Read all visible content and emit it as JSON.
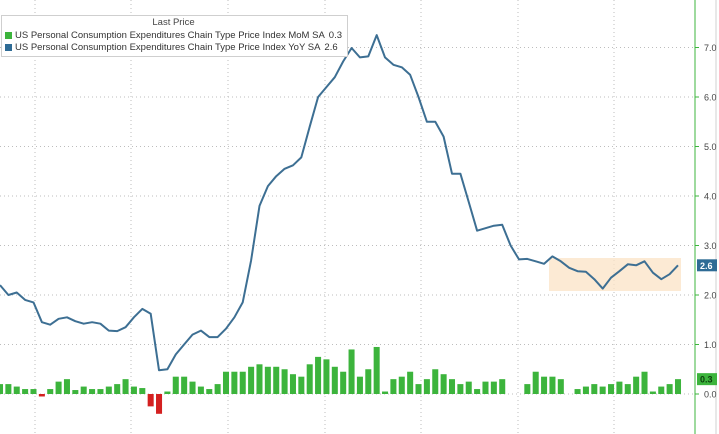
{
  "legend": {
    "title": "Last Price",
    "items": [
      {
        "label": "US Personal Consumption Expenditures Chain Type Price Index MoM SA",
        "value": "0.3",
        "color": "#3cb43c"
      },
      {
        "label": "US Personal Consumption Expenditures Chain Type Price Index YoY SA",
        "value": "2.6",
        "color": "#2e6b95"
      }
    ]
  },
  "chart_data": {
    "type": "line",
    "ylim": [
      -0.8,
      7.8
    ],
    "yticks": [
      "0.0",
      "1.0",
      "2.0",
      "3.0",
      "4.0",
      "5.0",
      "6.0",
      "7.0"
    ],
    "grid": true,
    "legend_position": "top-left",
    "last_value_labels": {
      "yoy": "2.6",
      "mom": "0.3"
    },
    "series": [
      {
        "name": "US Personal Consumption Expenditures Chain Type Price Index YoY SA",
        "kind": "line",
        "color": "#3d6f93",
        "values": [
          2.2,
          2.0,
          2.05,
          1.9,
          1.85,
          1.45,
          1.4,
          1.52,
          1.55,
          1.47,
          1.42,
          1.45,
          1.42,
          1.28,
          1.27,
          1.35,
          1.55,
          1.72,
          1.62,
          0.48,
          0.5,
          0.8,
          1.0,
          1.2,
          1.28,
          1.15,
          1.15,
          1.32,
          1.55,
          1.85,
          2.7,
          3.8,
          4.2,
          4.4,
          4.55,
          4.62,
          4.78,
          5.4,
          6.0,
          6.2,
          6.4,
          6.72,
          6.99,
          6.8,
          6.82,
          7.25,
          6.8,
          6.65,
          6.6,
          6.45,
          6.0,
          5.5,
          5.5,
          5.2,
          4.45,
          4.45,
          3.88,
          3.3,
          3.35,
          3.4,
          3.42,
          3.0,
          2.72,
          2.73,
          2.68,
          2.63,
          2.78,
          2.68,
          2.55,
          2.48,
          2.47,
          2.32,
          2.13,
          2.35,
          2.48,
          2.62,
          2.6,
          2.68,
          2.45,
          2.32,
          2.42,
          2.6
        ]
      },
      {
        "name": "US Personal Consumption Expenditures Chain Type Price Index MoM SA",
        "kind": "bar",
        "color": "#3cb43c",
        "negative_color": "#d42020",
        "values": [
          0.2,
          0.2,
          0.15,
          0.1,
          0.1,
          -0.05,
          0.1,
          0.25,
          0.3,
          0.08,
          0.15,
          0.1,
          0.1,
          0.15,
          0.2,
          0.3,
          0.15,
          0.12,
          -0.25,
          -0.4,
          0.05,
          0.35,
          0.35,
          0.25,
          0.15,
          0.1,
          0.2,
          0.45,
          0.45,
          0.45,
          0.55,
          0.6,
          0.55,
          0.55,
          0.5,
          0.4,
          0.35,
          0.6,
          0.75,
          0.7,
          0.55,
          0.45,
          0.9,
          0.35,
          0.5,
          0.95,
          0.05,
          0.3,
          0.35,
          0.45,
          0.2,
          0.3,
          0.5,
          0.4,
          0.3,
          0.2,
          0.25,
          0.1,
          0.25,
          0.25,
          0.3,
          0.0,
          0.0,
          0.2,
          0.45,
          0.35,
          0.35,
          0.3,
          0.0,
          0.1,
          0.15,
          0.2,
          0.15,
          0.2,
          0.25,
          0.2,
          0.35,
          0.45,
          0.05,
          0.15,
          0.2,
          0.3
        ]
      }
    ]
  }
}
